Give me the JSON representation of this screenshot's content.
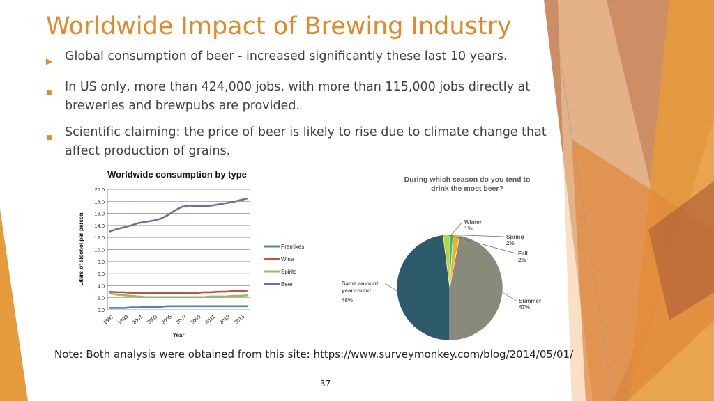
{
  "slide": {
    "title": "Worldwide Impact of Brewing Industry",
    "bullets": [
      {
        "icon": "arrow-bullet-icon",
        "text": "Global consumption of beer - increased significantly these last 10 years."
      },
      {
        "icon": "square-bullet-icon",
        "text": "In US only, more than 424,000 jobs, with more than 115,000 jobs directly at breweries and brewpubs are provided."
      },
      {
        "icon": "square-bullet-icon",
        "text": "Scientific claiming: the price of beer is likely to rise due to climate change that affect production of grains."
      }
    ],
    "note": "Note: Both analysis were obtained from this site: https://www.surveymonkey.com/blog/2014/05/01/",
    "page_number": "37",
    "colors": {
      "accent": "#e08a2a",
      "text": "#404040"
    }
  },
  "chart_data": [
    {
      "type": "line",
      "title": "Worldwide consumption by type",
      "xlabel": "Year",
      "ylabel": "Liters of alcohol per person",
      "x": [
        1997,
        1998,
        1999,
        2000,
        2001,
        2002,
        2003,
        2004,
        2005,
        2006,
        2007,
        2008,
        2009,
        2010,
        2011,
        2012,
        2013,
        2014,
        2015,
        2016
      ],
      "x_tick_labels": [
        "1997",
        "1999",
        "2001",
        "2003",
        "2005",
        "2007",
        "2009",
        "2011",
        "2013",
        "2015"
      ],
      "y_tick_labels": [
        "0.0",
        "2.0",
        "4.0",
        "6.0",
        "8.0",
        "10.0",
        "12.0",
        "14.0",
        "16.0",
        "18.0",
        "20.0"
      ],
      "ylim": [
        0,
        20
      ],
      "grid": true,
      "legend_position": "right",
      "series": [
        {
          "name": "Premixes",
          "color": "#4f81bd",
          "values": [
            0.3,
            0.3,
            0.3,
            0.4,
            0.4,
            0.5,
            0.5,
            0.5,
            0.6,
            0.6,
            0.6,
            0.6,
            0.6,
            0.6,
            0.6,
            0.6,
            0.6,
            0.6,
            0.6,
            0.6
          ]
        },
        {
          "name": "Wine",
          "color": "#c0504d",
          "values": [
            3.0,
            2.9,
            2.9,
            2.8,
            2.8,
            2.8,
            2.8,
            2.8,
            2.8,
            2.8,
            2.8,
            2.8,
            2.8,
            2.9,
            2.9,
            3.0,
            3.0,
            3.1,
            3.1,
            3.2
          ]
        },
        {
          "name": "Spirits",
          "color": "#9bbb59",
          "values": [
            2.7,
            2.5,
            2.4,
            2.3,
            2.2,
            2.1,
            2.1,
            2.1,
            2.1,
            2.1,
            2.1,
            2.1,
            2.1,
            2.1,
            2.2,
            2.2,
            2.2,
            2.3,
            2.3,
            2.4
          ]
        },
        {
          "name": "Beer",
          "color": "#8064a2",
          "values": [
            13.0,
            13.4,
            13.7,
            14.0,
            14.4,
            14.6,
            14.8,
            15.1,
            15.7,
            16.5,
            17.1,
            17.3,
            17.2,
            17.2,
            17.3,
            17.5,
            17.7,
            17.9,
            18.2,
            18.5
          ]
        }
      ]
    },
    {
      "type": "pie",
      "title": "During which season do you tend to drink the most beer?",
      "slices": [
        {
          "label": "Winter",
          "value": 1,
          "display": "1%",
          "color": "#2fb5a4"
        },
        {
          "label": "Spring",
          "value": 2,
          "display": "2%",
          "color": "#f1b31c"
        },
        {
          "label": "Summer",
          "value": 47,
          "display": "47%",
          "color": "#8a8a7a"
        },
        {
          "label": "Same amount year-round",
          "value": 48,
          "display": "48%",
          "color": "#2e5b6b"
        },
        {
          "label": "Fall",
          "value": 2,
          "display": "2%",
          "color": "#b5d53a"
        }
      ]
    }
  ]
}
